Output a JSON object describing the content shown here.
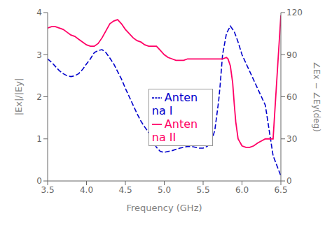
{
  "chart_data": {
    "type": "line",
    "xlabel": "Frequency (GHz)",
    "ylabel": "|Ex|/|Ey|",
    "y2label": "∠Ex − ∠Ey(deg)",
    "xlim": [
      3.5,
      6.5
    ],
    "xticks": [
      3.5,
      {
        "value": 4.0,
        "label": "4.0"
      },
      4.5,
      {
        "value": 5.0,
        "label": "5.0"
      },
      5.5,
      {
        "value": 6.0,
        "label": "6.0"
      },
      6.5
    ],
    "ylim": [
      0,
      4
    ],
    "yticks": [
      0,
      1,
      2,
      3,
      4
    ],
    "y2lim": [
      0,
      120
    ],
    "y2ticks": [
      0,
      30,
      60,
      90,
      120
    ],
    "grid": false,
    "legend": "center",
    "series": [
      {
        "name": "Antenna I",
        "color": "#0000cc",
        "line_style": "dashed",
        "axis": "y",
        "x": [
          3.5,
          3.55,
          3.6,
          3.65,
          3.7,
          3.75,
          3.8,
          3.85,
          3.9,
          3.95,
          4.0,
          4.05,
          4.1,
          4.15,
          4.2,
          4.25,
          4.3,
          4.35,
          4.4,
          4.45,
          4.5,
          4.55,
          4.6,
          4.65,
          4.7,
          4.75,
          4.8,
          4.85,
          4.9,
          4.95,
          5.0,
          5.05,
          5.1,
          5.15,
          5.2,
          5.25,
          5.3,
          5.35,
          5.4,
          5.45,
          5.5,
          5.55,
          5.6,
          5.65,
          5.7,
          5.72,
          5.75,
          5.8,
          5.85,
          5.9,
          5.95,
          6.0,
          6.1,
          6.2,
          6.3,
          6.4,
          6.5
        ],
        "values": [
          2.9,
          2.82,
          2.72,
          2.62,
          2.55,
          2.5,
          2.48,
          2.5,
          2.55,
          2.65,
          2.78,
          2.9,
          3.05,
          3.1,
          3.12,
          3.05,
          2.92,
          2.78,
          2.6,
          2.42,
          2.2,
          2.0,
          1.8,
          1.6,
          1.42,
          1.28,
          1.15,
          0.95,
          0.8,
          0.7,
          0.68,
          0.7,
          0.72,
          0.75,
          0.78,
          0.8,
          0.82,
          0.82,
          0.8,
          0.78,
          0.78,
          0.82,
          0.9,
          1.2,
          1.9,
          2.3,
          3.0,
          3.5,
          3.68,
          3.55,
          3.3,
          3.0,
          2.6,
          2.2,
          1.8,
          0.6,
          0.12
        ]
      },
      {
        "name": "Antenna II",
        "color": "#ff0066",
        "line_style": "solid",
        "axis": "y2",
        "x": [
          3.5,
          3.55,
          3.6,
          3.65,
          3.7,
          3.75,
          3.8,
          3.85,
          3.9,
          3.95,
          4.0,
          4.05,
          4.1,
          4.15,
          4.2,
          4.25,
          4.3,
          4.35,
          4.4,
          4.45,
          4.5,
          4.55,
          4.6,
          4.65,
          4.7,
          4.75,
          4.8,
          4.85,
          4.9,
          4.95,
          5.0,
          5.05,
          5.1,
          5.15,
          5.2,
          5.25,
          5.3,
          5.35,
          5.4,
          5.45,
          5.5,
          5.55,
          5.6,
          5.65,
          5.7,
          5.75,
          5.8,
          5.82,
          5.85,
          5.88,
          5.9,
          5.92,
          5.95,
          6.0,
          6.05,
          6.1,
          6.15,
          6.2,
          6.3,
          6.4,
          6.5
        ],
        "values": [
          109,
          110,
          110,
          109,
          108,
          106,
          104,
          103,
          101,
          99,
          97,
          96,
          96,
          98,
          102,
          107,
          112,
          114,
          115,
          112,
          108,
          105,
          102,
          100,
          99,
          97,
          96,
          96,
          96,
          93,
          90,
          88,
          87,
          86,
          86,
          86,
          87,
          87,
          87,
          87,
          87,
          87,
          87,
          87,
          87,
          87,
          88,
          87,
          82,
          70,
          55,
          42,
          30,
          25,
          24,
          24,
          25,
          27,
          30,
          30,
          118
        ]
      }
    ]
  }
}
